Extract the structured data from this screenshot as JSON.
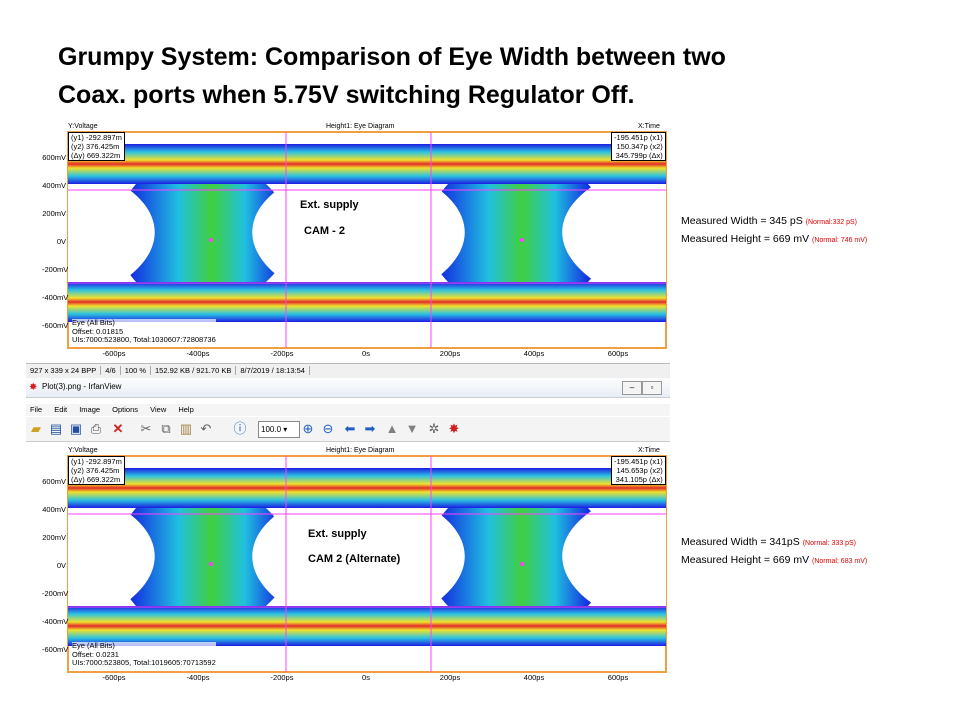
{
  "slide_title_line1": "Grumpy System:  Comparison of  Eye Width between two",
  "slide_title_line2": "Coax. ports when 5.75V switching Regulator Off.",
  "panels": [
    {
      "header_y": "Y:Voltage",
      "header_title": "Height1: Eye Diagram",
      "header_x": "X:Time",
      "cursor_left": [
        "(y1) -292.897m",
        "(y2) 376.425m",
        "(Δy) 669.322m"
      ],
      "cursor_right": [
        "-195.451p (x1)",
        "150.347p (x2)",
        "345.799p (Δx)"
      ],
      "annotation_1": "Ext. supply",
      "annotation_2": "CAM - 2",
      "meta": [
        "Eye (All Bits)",
        "Offset: 0.01815",
        "UIs:7000:523800, Total:1030607:72808736"
      ]
    },
    {
      "header_y": "Y:Voltage",
      "header_title": "Height1: Eye Diagram",
      "header_x": "X:Time",
      "cursor_left": [
        "(y1) -292.897m",
        "(y2) 376.425m",
        "(Δy) 669.322m"
      ],
      "cursor_right": [
        "-195.451p (x1)",
        "145.653p (x2)",
        "341.105p (Δx)"
      ],
      "annotation_1": "Ext. supply",
      "annotation_2": "CAM 2 (Alternate)",
      "meta": [
        "Eye (All Bits)",
        "Offset: 0.0231",
        "UIs:7000:523805, Total:1019605:70713592"
      ]
    }
  ],
  "y_axis_labels": [
    "600mV",
    "400mV",
    "200mV",
    "0V",
    "-200mV",
    "-400mV",
    "-600mV"
  ],
  "x_axis_labels": [
    "-600ps",
    "-400ps",
    "-200ps",
    "0s",
    "200ps",
    "400ps",
    "600ps"
  ],
  "measurements": [
    {
      "width_text": "Measured Width  = 345 pS ",
      "width_normal": "(Normal:332 pS)",
      "height_text": "Measured Height  = 669 mV ",
      "height_normal": "(Normal:  746 mV)"
    },
    {
      "width_text": "Measured Width  = 341pS ",
      "width_normal": "(Normal:  333 pS)",
      "height_text": "Measured Height  = 669 mV ",
      "height_normal": "(Normal:  683 mV)"
    }
  ],
  "statusbar": [
    "927 x 339 x 24 BPP",
    "4/6",
    "100 %",
    "152.92 KB / 921.70 KB",
    "8/7/2019 / 18:13:54"
  ],
  "irfan": {
    "window_title": "Plot(3).png - IrfanView",
    "menu": [
      "File",
      "Edit",
      "Image",
      "Options",
      "View",
      "Help"
    ],
    "zoom_value": "100.0"
  },
  "colors": {
    "frame_orange": "#f0a040",
    "cursor_magenta": "#ff40ff",
    "eye_dark_blue": "#1010e0",
    "eye_cyan": "#20c0e0",
    "eye_green": "#40d040",
    "eye_yellow": "#f0e020",
    "eye_red": "#e02020",
    "normal_red": "#e00000"
  }
}
